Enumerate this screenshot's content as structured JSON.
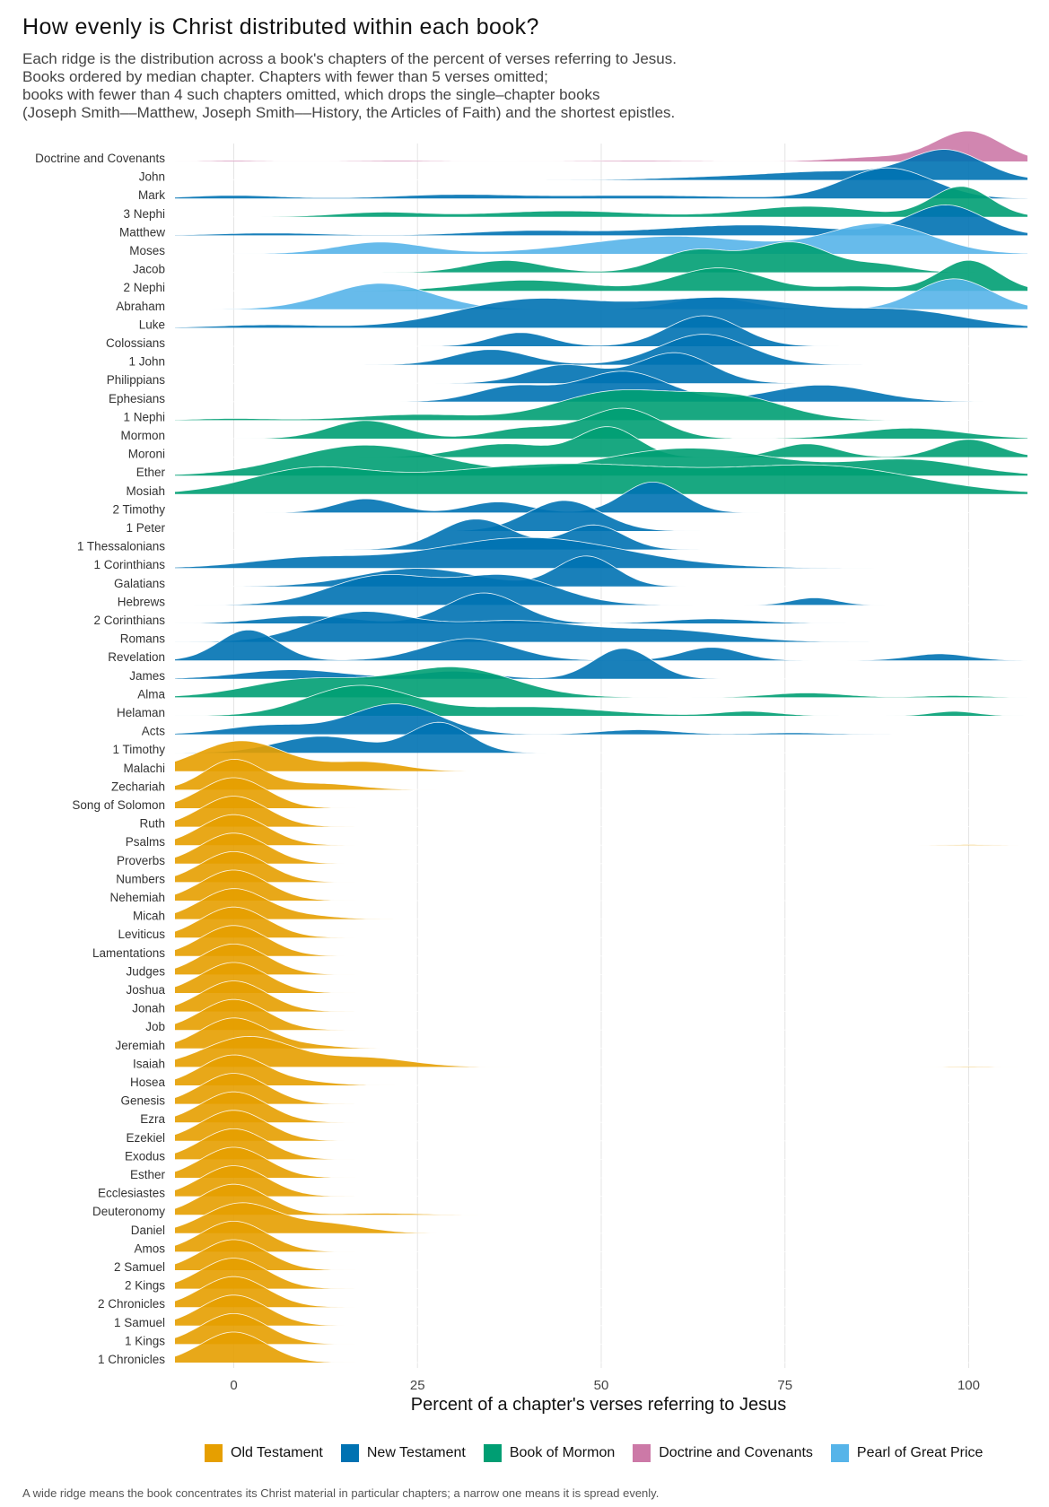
{
  "title": "How evenly is Christ distributed within each book?",
  "subtitle_lines": [
    "Each ridge is the distribution across a book's chapters of the percent of verses referring to Jesus.",
    "Books ordered by median chapter. Chapters with fewer than 5 verses omitted;",
    "books with fewer than 4 such chapters omitted, which drops the single–chapter books",
    "(Joseph Smith––Matthew, Joseph Smith––History, the Articles of Faith) and the shortest epistles."
  ],
  "caption": "A wide ridge means the book concentrates its Christ material in particular chapters; a narrow one means it is spread evenly.",
  "colors": {
    "Old Testament": "#E69F00",
    "New Testament": "#0072B2",
    "Book of Mormon": "#009E73",
    "Doctrine and Covenants": "#CC79A7",
    "Pearl of Great Price": "#56B4E9"
  },
  "legend": [
    "Old Testament",
    "New Testament",
    "Book of Mormon",
    "Doctrine and Covenants",
    "Pearl of Great Price"
  ],
  "chart_data": {
    "type": "ridgeline",
    "xlabel": "Percent of a chapter's verses referring to Jesus",
    "ylabel": "",
    "xlim": [
      -8,
      108
    ],
    "x_ticks": [
      0,
      25,
      50,
      75,
      100
    ],
    "grid": true,
    "legend_position": "bottom",
    "books": [
      {
        "name": "Doctrine and Covenants",
        "collection": "Doctrine and Covenants",
        "modes": [
          [
            100,
            4.5,
            1.0
          ],
          [
            88,
            6,
            0.15
          ],
          [
            0,
            4,
            0.03
          ],
          [
            22,
            6,
            0.03
          ],
          [
            55,
            8,
            0.03
          ]
        ]
      },
      {
        "name": "John",
        "collection": "New Testament",
        "modes": [
          [
            97,
            5,
            1.0
          ],
          [
            82,
            9,
            0.3
          ],
          [
            65,
            8,
            0.08
          ]
        ]
      },
      {
        "name": "Mark",
        "collection": "New Testament",
        "modes": [
          [
            89,
            6,
            1.0
          ],
          [
            55,
            12,
            0.1
          ],
          [
            30,
            8,
            0.12
          ],
          [
            0,
            6,
            0.1
          ]
        ]
      },
      {
        "name": "3 Nephi",
        "collection": "Book of Mormon",
        "modes": [
          [
            99,
            4,
            1.0
          ],
          [
            78,
            8,
            0.35
          ],
          [
            45,
            10,
            0.2
          ],
          [
            20,
            6,
            0.15
          ]
        ]
      },
      {
        "name": "Matthew",
        "collection": "New Testament",
        "modes": [
          [
            97,
            5,
            1.0
          ],
          [
            70,
            12,
            0.35
          ],
          [
            40,
            8,
            0.15
          ],
          [
            5,
            7,
            0.08
          ]
        ]
      },
      {
        "name": "Moses",
        "collection": "Pearl of Great Price",
        "modes": [
          [
            88,
            7,
            1.0
          ],
          [
            60,
            12,
            0.6
          ],
          [
            20,
            6,
            0.4
          ]
        ]
      },
      {
        "name": "Jacob",
        "collection": "Book of Mormon",
        "modes": [
          [
            76,
            5,
            1.0
          ],
          [
            63,
            5,
            0.75
          ],
          [
            37,
            5,
            0.4
          ],
          [
            88,
            4,
            0.25
          ]
        ]
      },
      {
        "name": "2 Nephi",
        "collection": "Book of Mormon",
        "modes": [
          [
            100,
            4,
            1.0
          ],
          [
            66,
            6,
            0.75
          ],
          [
            40,
            8,
            0.35
          ],
          [
            85,
            5,
            0.15
          ]
        ]
      },
      {
        "name": "Abraham",
        "collection": "Pearl of Great Price",
        "modes": [
          [
            98,
            5,
            1.0
          ],
          [
            20,
            7,
            0.85
          ],
          [
            65,
            5,
            0.4
          ]
        ]
      },
      {
        "name": "Luke",
        "collection": "New Testament",
        "modes": [
          [
            67,
            12,
            1.0
          ],
          [
            40,
            10,
            0.9
          ],
          [
            92,
            8,
            0.5
          ],
          [
            5,
            7,
            0.1
          ]
        ]
      },
      {
        "name": "Colossians",
        "collection": "New Testament",
        "modes": [
          [
            64,
            5,
            1.0
          ],
          [
            39,
            4,
            0.45
          ]
        ]
      },
      {
        "name": "1 John",
        "collection": "New Testament",
        "modes": [
          [
            64,
            6,
            1.0
          ],
          [
            35,
            5,
            0.5
          ]
        ]
      },
      {
        "name": "Philippians",
        "collection": "New Testament",
        "modes": [
          [
            60,
            5,
            1.0
          ],
          [
            45,
            5,
            0.6
          ]
        ]
      },
      {
        "name": "Ephesians",
        "collection": "New Testament",
        "modes": [
          [
            53,
            6,
            1.0
          ],
          [
            38,
            5,
            0.5
          ],
          [
            80,
            7,
            0.55
          ]
        ]
      },
      {
        "name": "1 Nephi",
        "collection": "Book of Mormon",
        "modes": [
          [
            52,
            8,
            1.0
          ],
          [
            68,
            7,
            0.8
          ],
          [
            25,
            8,
            0.2
          ],
          [
            0,
            5,
            0.06
          ]
        ]
      },
      {
        "name": "Mormon",
        "collection": "Book of Mormon",
        "modes": [
          [
            53,
            5,
            1.0
          ],
          [
            18,
            5,
            0.6
          ],
          [
            40,
            5,
            0.35
          ],
          [
            92,
            7,
            0.35
          ]
        ]
      },
      {
        "name": "Moroni",
        "collection": "Book of Mormon",
        "modes": [
          [
            51,
            4,
            1.0
          ],
          [
            100,
            4,
            0.6
          ],
          [
            78,
            4,
            0.45
          ],
          [
            37,
            6,
            0.45
          ]
        ]
      },
      {
        "name": "Ether",
        "collection": "Book of Mormon",
        "modes": [
          [
            18,
            10,
            1.0
          ],
          [
            62,
            12,
            0.9
          ],
          [
            92,
            8,
            0.5
          ]
        ]
      },
      {
        "name": "Mosiah",
        "collection": "Book of Mormon",
        "modes": [
          [
            45,
            20,
            0.6
          ],
          [
            82,
            12,
            0.45
          ],
          [
            10,
            8,
            0.4
          ]
        ]
      },
      {
        "name": "2 Timothy",
        "collection": "New Testament",
        "modes": [
          [
            57,
            4,
            1.0
          ],
          [
            18,
            4,
            0.45
          ],
          [
            36,
            4,
            0.35
          ]
        ]
      },
      {
        "name": "1 Peter",
        "collection": "New Testament",
        "modes": [
          [
            45,
            5,
            1.0
          ]
        ]
      },
      {
        "name": "1 Thessalonians",
        "collection": "New Testament",
        "modes": [
          [
            33,
            5,
            1.0
          ],
          [
            49,
            4,
            0.8
          ]
        ]
      },
      {
        "name": "1 Corinthians",
        "collection": "New Testament",
        "modes": [
          [
            40,
            13,
            1.0
          ],
          [
            10,
            8,
            0.3
          ]
        ]
      },
      {
        "name": "Galatians",
        "collection": "New Testament",
        "modes": [
          [
            48,
            4,
            1.0
          ],
          [
            25,
            8,
            0.6
          ]
        ]
      },
      {
        "name": "Hebrews",
        "collection": "New Testament",
        "modes": [
          [
            20,
            7,
            0.8
          ],
          [
            37,
            7,
            0.8
          ],
          [
            79,
            3,
            0.2
          ]
        ]
      },
      {
        "name": "2 Corinthians",
        "collection": "New Testament",
        "modes": [
          [
            34,
            5,
            1.0
          ],
          [
            10,
            6,
            0.25
          ],
          [
            65,
            6,
            0.15
          ]
        ]
      },
      {
        "name": "Romans",
        "collection": "New Testament",
        "modes": [
          [
            17,
            7,
            0.8
          ],
          [
            38,
            10,
            0.6
          ],
          [
            60,
            8,
            0.3
          ]
        ]
      },
      {
        "name": "Revelation",
        "collection": "New Testament",
        "modes": [
          [
            2,
            4,
            0.7
          ],
          [
            32,
            6,
            0.5
          ],
          [
            65,
            4,
            0.3
          ],
          [
            96,
            4,
            0.15
          ]
        ]
      },
      {
        "name": "James",
        "collection": "New Testament",
        "modes": [
          [
            53,
            4,
            1.0
          ],
          [
            8,
            7,
            0.3
          ],
          [
            30,
            5,
            0.25
          ]
        ]
      },
      {
        "name": "Alma",
        "collection": "Book of Mormon",
        "modes": [
          [
            30,
            8,
            1.0
          ],
          [
            10,
            8,
            0.6
          ],
          [
            78,
            5,
            0.15
          ],
          [
            98,
            4,
            0.06
          ]
        ]
      },
      {
        "name": "Helaman",
        "collection": "Book of Mormon",
        "modes": [
          [
            17,
            7,
            1.0
          ],
          [
            40,
            10,
            0.3
          ],
          [
            98,
            3,
            0.15
          ],
          [
            70,
            4,
            0.15
          ]
        ]
      },
      {
        "name": "Acts",
        "collection": "New Testament",
        "modes": [
          [
            22,
            6,
            1.0
          ],
          [
            5,
            6,
            0.3
          ],
          [
            55,
            5,
            0.15
          ],
          [
            76,
            5,
            0.05
          ]
        ]
      },
      {
        "name": "1 Timothy",
        "collection": "New Testament",
        "modes": [
          [
            28,
            4,
            1.0
          ],
          [
            12,
            6,
            0.55
          ]
        ]
      },
      {
        "name": "Malachi",
        "collection": "Old Testament",
        "modes": [
          [
            1,
            6,
            1.0
          ],
          [
            18,
            5,
            0.3
          ]
        ]
      },
      {
        "name": "Zechariah",
        "collection": "Old Testament",
        "modes": [
          [
            0,
            4,
            1.0
          ],
          [
            12,
            5,
            0.2
          ]
        ]
      },
      {
        "name": "Song of Solomon",
        "collection": "Old Testament",
        "modes": [
          [
            0,
            4.5,
            1.0
          ]
        ]
      },
      {
        "name": "Ruth",
        "collection": "Old Testament",
        "modes": [
          [
            0,
            4.5,
            1.0
          ]
        ]
      },
      {
        "name": "Psalms",
        "collection": "Old Testament",
        "modes": [
          [
            0,
            4.5,
            1.0
          ],
          [
            100,
            3,
            0.02
          ]
        ]
      },
      {
        "name": "Proverbs",
        "collection": "Old Testament",
        "modes": [
          [
            0,
            4.5,
            1.0
          ]
        ]
      },
      {
        "name": "Numbers",
        "collection": "Old Testament",
        "modes": [
          [
            0,
            4.5,
            1.0
          ]
        ]
      },
      {
        "name": "Nehemiah",
        "collection": "Old Testament",
        "modes": [
          [
            0,
            4.5,
            1.0
          ]
        ]
      },
      {
        "name": "Micah",
        "collection": "Old Testament",
        "modes": [
          [
            0,
            4.5,
            1.0
          ],
          [
            10,
            4,
            0.1
          ]
        ]
      },
      {
        "name": "Leviticus",
        "collection": "Old Testament",
        "modes": [
          [
            0,
            4.5,
            1.0
          ]
        ]
      },
      {
        "name": "Lamentations",
        "collection": "Old Testament",
        "modes": [
          [
            0,
            4.5,
            1.0
          ]
        ]
      },
      {
        "name": "Judges",
        "collection": "Old Testament",
        "modes": [
          [
            0,
            4.5,
            1.0
          ]
        ]
      },
      {
        "name": "Joshua",
        "collection": "Old Testament",
        "modes": [
          [
            0,
            4.5,
            1.0
          ]
        ]
      },
      {
        "name": "Jonah",
        "collection": "Old Testament",
        "modes": [
          [
            0,
            4.5,
            1.0
          ]
        ]
      },
      {
        "name": "Job",
        "collection": "Old Testament",
        "modes": [
          [
            0,
            4.5,
            1.0
          ]
        ]
      },
      {
        "name": "Jeremiah",
        "collection": "Old Testament",
        "modes": [
          [
            0,
            4.5,
            1.0
          ],
          [
            10,
            4,
            0.1
          ]
        ]
      },
      {
        "name": "Isaiah",
        "collection": "Old Testament",
        "modes": [
          [
            2,
            6,
            1.0
          ],
          [
            18,
            6,
            0.3
          ],
          [
            100,
            3,
            0.02
          ]
        ]
      },
      {
        "name": "Hosea",
        "collection": "Old Testament",
        "modes": [
          [
            0,
            4.5,
            1.0
          ],
          [
            10,
            4,
            0.1
          ]
        ]
      },
      {
        "name": "Genesis",
        "collection": "Old Testament",
        "modes": [
          [
            0,
            4.5,
            1.0
          ]
        ]
      },
      {
        "name": "Ezra",
        "collection": "Old Testament",
        "modes": [
          [
            0,
            4.5,
            1.0
          ]
        ]
      },
      {
        "name": "Ezekiel",
        "collection": "Old Testament",
        "modes": [
          [
            0,
            4.5,
            1.0
          ]
        ]
      },
      {
        "name": "Exodus",
        "collection": "Old Testament",
        "modes": [
          [
            0,
            4.5,
            1.0
          ]
        ]
      },
      {
        "name": "Esther",
        "collection": "Old Testament",
        "modes": [
          [
            0,
            4.5,
            1.0
          ]
        ]
      },
      {
        "name": "Ecclesiastes",
        "collection": "Old Testament",
        "modes": [
          [
            0,
            4.5,
            1.0
          ]
        ]
      },
      {
        "name": "Deuteronomy",
        "collection": "Old Testament",
        "modes": [
          [
            0,
            4.5,
            1.0
          ],
          [
            20,
            5,
            0.05
          ]
        ]
      },
      {
        "name": "Daniel",
        "collection": "Old Testament",
        "modes": [
          [
            1,
            5,
            1.0
          ],
          [
            13,
            5,
            0.3
          ]
        ]
      },
      {
        "name": "Amos",
        "collection": "Old Testament",
        "modes": [
          [
            0,
            4.5,
            1.0
          ]
        ]
      },
      {
        "name": "2 Samuel",
        "collection": "Old Testament",
        "modes": [
          [
            0,
            4.5,
            1.0
          ]
        ]
      },
      {
        "name": "2 Kings",
        "collection": "Old Testament",
        "modes": [
          [
            0,
            4.5,
            1.0
          ]
        ]
      },
      {
        "name": "2 Chronicles",
        "collection": "Old Testament",
        "modes": [
          [
            0,
            4.5,
            1.0
          ]
        ]
      },
      {
        "name": "1 Samuel",
        "collection": "Old Testament",
        "modes": [
          [
            0,
            4.5,
            1.0
          ]
        ]
      },
      {
        "name": "1 Kings",
        "collection": "Old Testament",
        "modes": [
          [
            0,
            4.5,
            1.0
          ]
        ]
      },
      {
        "name": "1 Chronicles",
        "collection": "Old Testament",
        "modes": [
          [
            0,
            4.5,
            1.0
          ]
        ]
      }
    ]
  }
}
